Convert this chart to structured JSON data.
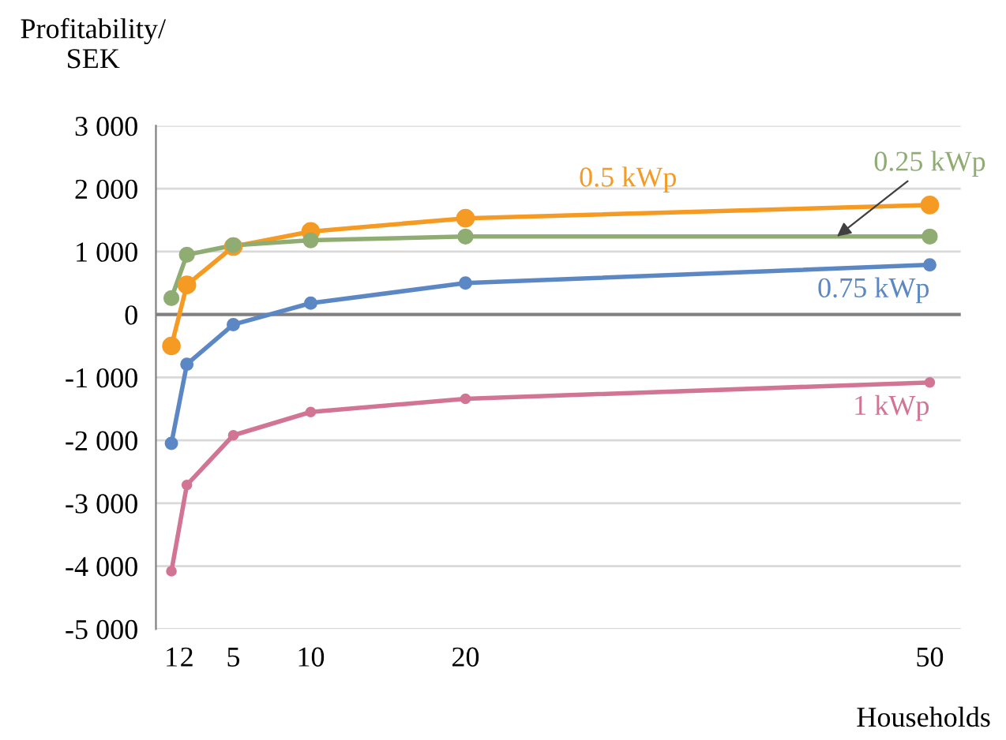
{
  "chart_data": {
    "type": "line",
    "ylabel": "Profitability/\nSEK",
    "xlabel": "Households",
    "x": [
      1,
      2,
      5,
      10,
      20,
      50
    ],
    "series": [
      {
        "name": "0.5 kWp",
        "color": "#f59a23",
        "values": [
          -500,
          470,
          1080,
          1320,
          1530,
          1740
        ]
      },
      {
        "name": "0.25 kWp",
        "color": "#8fac72",
        "values": [
          260,
          950,
          1100,
          1180,
          1240,
          1240
        ]
      },
      {
        "name": "0.75 kWp",
        "color": "#5b87c5",
        "values": [
          -2050,
          -790,
          -160,
          180,
          500,
          790
        ]
      },
      {
        "name": "1 kWp",
        "color": "#d27494",
        "values": [
          -4080,
          -2710,
          -1920,
          -1550,
          -1340,
          -1080
        ]
      }
    ],
    "xlim": [
      0,
      52
    ],
    "xticks": [
      1,
      2,
      5,
      10,
      20,
      50
    ],
    "ylim": [
      -5000,
      3000
    ],
    "yticks": [
      {
        "value": 3000,
        "label": "3 000"
      },
      {
        "value": 2000,
        "label": "2 000"
      },
      {
        "value": 1000,
        "label": "1 000"
      },
      0,
      {
        "value": -1000,
        "label": "-1 000"
      },
      {
        "value": -2000,
        "label": "-2 000"
      },
      {
        "value": -3000,
        "label": "-3 000"
      },
      {
        "value": -4000,
        "label": "-4 000"
      },
      {
        "value": -5000,
        "label": "-5 000"
      }
    ],
    "grid": "y",
    "marker": "circle",
    "line_style": "solid",
    "legend": false
  }
}
